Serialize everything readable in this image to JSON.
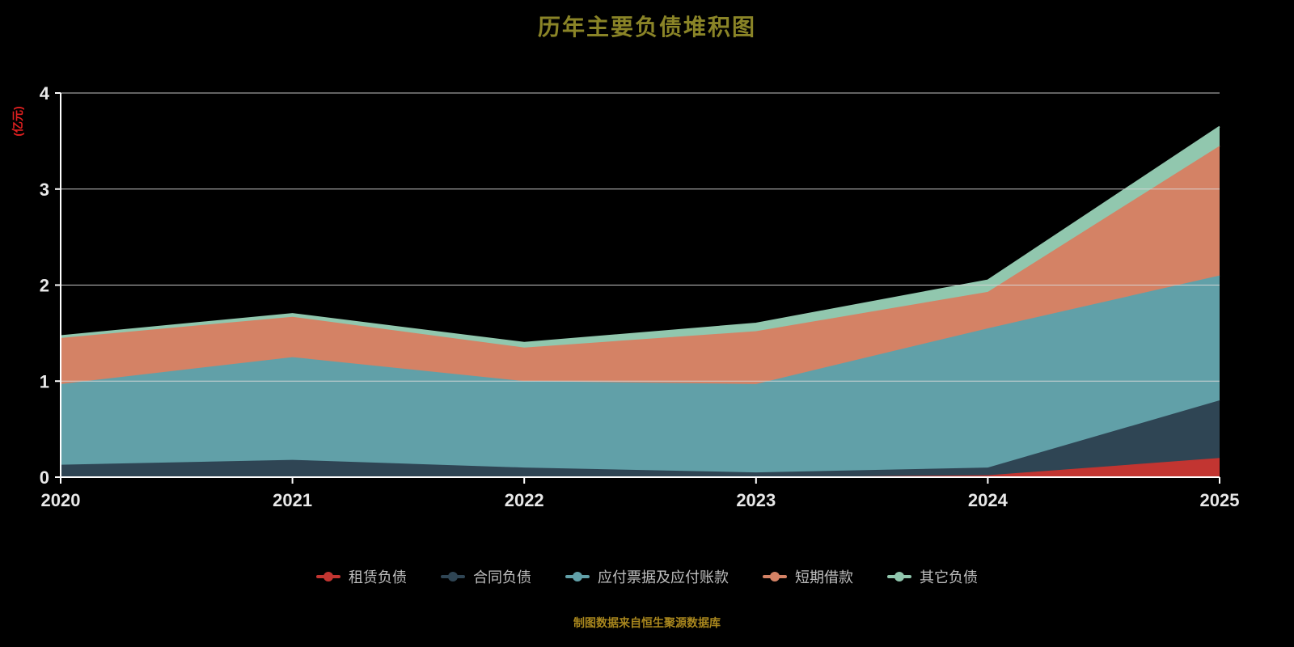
{
  "title": "历年主要负债堆积图",
  "footer": "制图数据来自恒生聚源数据库",
  "colors": {
    "background": "#000000",
    "title": "#8a8427",
    "footer": "#a8861d",
    "axis_label": "#e8e8e8",
    "grid": "#d9d9d9",
    "axis_line": "#ffffff",
    "unit_label": "#e02020",
    "legend_text": "#bfbfbf"
  },
  "chart_data": {
    "type": "area",
    "stacked": true,
    "title": "历年主要负债堆积图",
    "ylabel": "(亿元)",
    "xlabel": "",
    "categories": [
      "2020",
      "2021",
      "2022",
      "2023",
      "2024",
      "2025"
    ],
    "ylim": [
      0,
      4
    ],
    "yticks": [
      0,
      1,
      2,
      3,
      4
    ],
    "grid": true,
    "legend_position": "bottom",
    "series": [
      {
        "name": "租赁负债",
        "color": "#c23531",
        "values": [
          0,
          0,
          0,
          0,
          0.02,
          0.2
        ]
      },
      {
        "name": "合同负债",
        "color": "#2f4554",
        "values": [
          0.13,
          0.18,
          0.1,
          0.05,
          0.08,
          0.6
        ]
      },
      {
        "name": "应付票据及应付账款",
        "color": "#61a0a8",
        "values": [
          0.84,
          1.07,
          0.9,
          0.92,
          1.45,
          1.3
        ]
      },
      {
        "name": "短期借款",
        "color": "#d48265",
        "values": [
          0.48,
          0.42,
          0.35,
          0.55,
          0.38,
          1.35
        ]
      },
      {
        "name": "其它负债",
        "color": "#91c7ae",
        "values": [
          0.02,
          0.03,
          0.05,
          0.08,
          0.12,
          0.2
        ]
      }
    ],
    "stack_totals": [
      1.47,
      1.7,
      1.4,
      1.6,
      2.05,
      3.65
    ]
  }
}
